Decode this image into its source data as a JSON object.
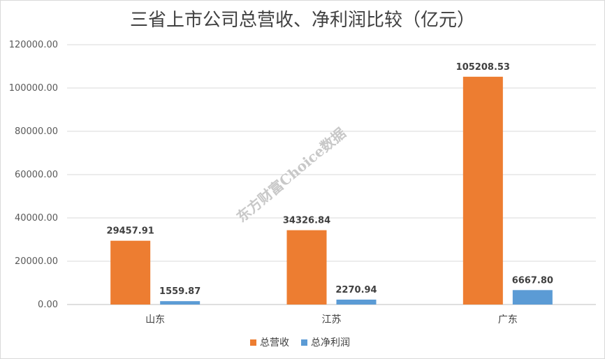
{
  "chart_data": {
    "type": "bar",
    "title": "三省上市公司总营收、净利润比较（亿元）",
    "categories": [
      "山东",
      "江苏",
      "广东"
    ],
    "series": [
      {
        "name": "总营收",
        "color": "#ED7D31",
        "values": [
          29457.91,
          34326.84,
          105208.53
        ],
        "labels": [
          "29457.91",
          "34326.84",
          "105208.53"
        ]
      },
      {
        "name": "总净利润",
        "color": "#5B9BD5",
        "values": [
          1559.87,
          2270.94,
          6667.8
        ],
        "labels": [
          "1559.87",
          "2270.94",
          "6667.80"
        ]
      }
    ],
    "ylim": [
      0,
      120000
    ],
    "yticks": [
      "0.00",
      "20000.00",
      "40000.00",
      "60000.00",
      "80000.00",
      "100000.00",
      "120000.00"
    ],
    "grid": true,
    "legend": "bottom"
  },
  "watermark": "东方财富Choice数据",
  "colors": {
    "gridline": "#d9d9d9",
    "axis": "#bfbfbf"
  }
}
